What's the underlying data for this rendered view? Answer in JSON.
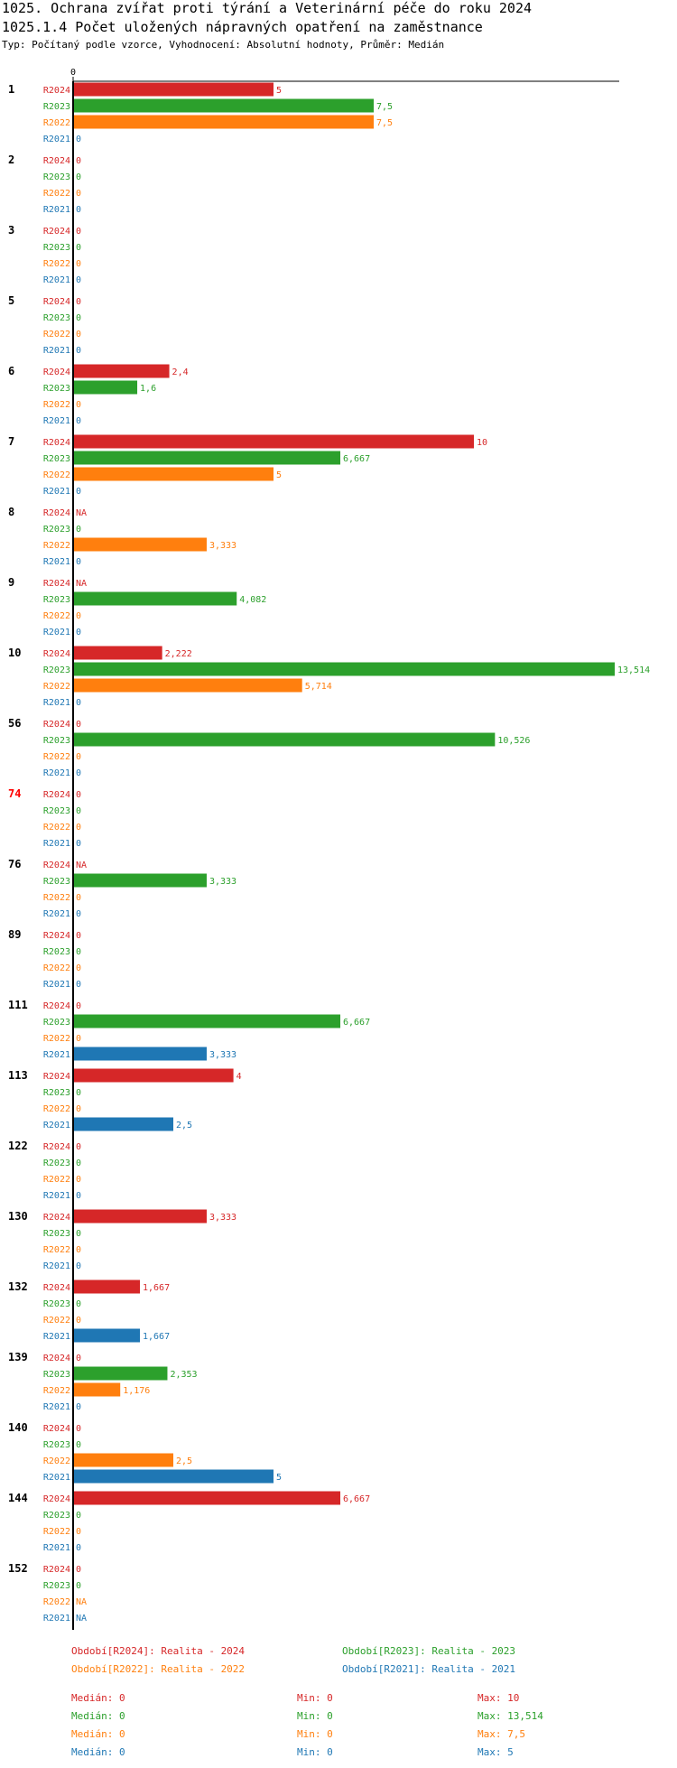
{
  "title": "1025. Ochrana zvířat proti týrání a Veterinární péče do roku 2024",
  "subtitle_title": "1025.1.4 Počet uložených nápravných opatření na zaměstnance",
  "description": "Typ: Počítaný podle vzorce, Vyhodnocení: Absolutní hodnoty, Průměr: Medián",
  "colors": {
    "R2024": "#d62728",
    "R2023": "#2ca02c",
    "R2022": "#ff7f0e",
    "R2021": "#1f77b4",
    "highlight": "#ff0000"
  },
  "chart_data": {
    "type": "bar",
    "orientation": "horizontal",
    "axis_zero_label": "0",
    "xlim": [
      0,
      13.514
    ],
    "series_order": [
      "R2024",
      "R2023",
      "R2022",
      "R2021"
    ],
    "groups": [
      {
        "label": "1",
        "values": [
          {
            "s": "R2024",
            "v": 5,
            "label": "5"
          },
          {
            "s": "R2023",
            "v": 7.5,
            "label": "7,5"
          },
          {
            "s": "R2022",
            "v": 7.5,
            "label": "7,5"
          },
          {
            "s": "R2021",
            "v": 0,
            "label": "0"
          }
        ]
      },
      {
        "label": "2",
        "values": [
          {
            "s": "R2024",
            "v": 0,
            "label": "0"
          },
          {
            "s": "R2023",
            "v": 0,
            "label": "0"
          },
          {
            "s": "R2022",
            "v": 0,
            "label": "0"
          },
          {
            "s": "R2021",
            "v": 0,
            "label": "0"
          }
        ]
      },
      {
        "label": "3",
        "values": [
          {
            "s": "R2024",
            "v": 0,
            "label": "0"
          },
          {
            "s": "R2023",
            "v": 0,
            "label": "0"
          },
          {
            "s": "R2022",
            "v": 0,
            "label": "0"
          },
          {
            "s": "R2021",
            "v": 0,
            "label": "0"
          }
        ]
      },
      {
        "label": "5",
        "values": [
          {
            "s": "R2024",
            "v": 0,
            "label": "0"
          },
          {
            "s": "R2023",
            "v": 0,
            "label": "0"
          },
          {
            "s": "R2022",
            "v": 0,
            "label": "0"
          },
          {
            "s": "R2021",
            "v": 0,
            "label": "0"
          }
        ]
      },
      {
        "label": "6",
        "values": [
          {
            "s": "R2024",
            "v": 2.4,
            "label": "2,4"
          },
          {
            "s": "R2023",
            "v": 1.6,
            "label": "1,6"
          },
          {
            "s": "R2022",
            "v": 0,
            "label": "0"
          },
          {
            "s": "R2021",
            "v": 0,
            "label": "0"
          }
        ]
      },
      {
        "label": "7",
        "values": [
          {
            "s": "R2024",
            "v": 10,
            "label": "10"
          },
          {
            "s": "R2023",
            "v": 6.667,
            "label": "6,667"
          },
          {
            "s": "R2022",
            "v": 5,
            "label": "5"
          },
          {
            "s": "R2021",
            "v": 0,
            "label": "0"
          }
        ]
      },
      {
        "label": "8",
        "values": [
          {
            "s": "R2024",
            "v": null,
            "label": "NA"
          },
          {
            "s": "R2023",
            "v": 0,
            "label": "0"
          },
          {
            "s": "R2022",
            "v": 3.333,
            "label": "3,333"
          },
          {
            "s": "R2021",
            "v": 0,
            "label": "0"
          }
        ]
      },
      {
        "label": "9",
        "values": [
          {
            "s": "R2024",
            "v": null,
            "label": "NA"
          },
          {
            "s": "R2023",
            "v": 4.082,
            "label": "4,082"
          },
          {
            "s": "R2022",
            "v": 0,
            "label": "0"
          },
          {
            "s": "R2021",
            "v": 0,
            "label": "0"
          }
        ]
      },
      {
        "label": "10",
        "values": [
          {
            "s": "R2024",
            "v": 2.222,
            "label": "2,222"
          },
          {
            "s": "R2023",
            "v": 13.514,
            "label": "13,514"
          },
          {
            "s": "R2022",
            "v": 5.714,
            "label": "5,714"
          },
          {
            "s": "R2021",
            "v": 0,
            "label": "0"
          }
        ]
      },
      {
        "label": "56",
        "values": [
          {
            "s": "R2024",
            "v": 0,
            "label": "0"
          },
          {
            "s": "R2023",
            "v": 10.526,
            "label": "10,526"
          },
          {
            "s": "R2022",
            "v": 0,
            "label": "0"
          },
          {
            "s": "R2021",
            "v": 0,
            "label": "0"
          }
        ]
      },
      {
        "label": "74",
        "highlight": true,
        "values": [
          {
            "s": "R2024",
            "v": 0,
            "label": "0"
          },
          {
            "s": "R2023",
            "v": 0,
            "label": "0"
          },
          {
            "s": "R2022",
            "v": 0,
            "label": "0"
          },
          {
            "s": "R2021",
            "v": 0,
            "label": "0"
          }
        ]
      },
      {
        "label": "76",
        "values": [
          {
            "s": "R2024",
            "v": null,
            "label": "NA"
          },
          {
            "s": "R2023",
            "v": 3.333,
            "label": "3,333"
          },
          {
            "s": "R2022",
            "v": 0,
            "label": "0"
          },
          {
            "s": "R2021",
            "v": 0,
            "label": "0"
          }
        ]
      },
      {
        "label": "89",
        "values": [
          {
            "s": "R2024",
            "v": 0,
            "label": "0"
          },
          {
            "s": "R2023",
            "v": 0,
            "label": "0"
          },
          {
            "s": "R2022",
            "v": 0,
            "label": "0"
          },
          {
            "s": "R2021",
            "v": 0,
            "label": "0"
          }
        ]
      },
      {
        "label": "111",
        "values": [
          {
            "s": "R2024",
            "v": 0,
            "label": "0"
          },
          {
            "s": "R2023",
            "v": 6.667,
            "label": "6,667"
          },
          {
            "s": "R2022",
            "v": 0,
            "label": "0"
          },
          {
            "s": "R2021",
            "v": 3.333,
            "label": "3,333"
          }
        ]
      },
      {
        "label": "113",
        "values": [
          {
            "s": "R2024",
            "v": 4,
            "label": "4"
          },
          {
            "s": "R2023",
            "v": 0,
            "label": "0"
          },
          {
            "s": "R2022",
            "v": 0,
            "label": "0"
          },
          {
            "s": "R2021",
            "v": 2.5,
            "label": "2,5"
          }
        ]
      },
      {
        "label": "122",
        "values": [
          {
            "s": "R2024",
            "v": 0,
            "label": "0"
          },
          {
            "s": "R2023",
            "v": 0,
            "label": "0"
          },
          {
            "s": "R2022",
            "v": 0,
            "label": "0"
          },
          {
            "s": "R2021",
            "v": 0,
            "label": "0"
          }
        ]
      },
      {
        "label": "130",
        "values": [
          {
            "s": "R2024",
            "v": 3.333,
            "label": "3,333"
          },
          {
            "s": "R2023",
            "v": 0,
            "label": "0"
          },
          {
            "s": "R2022",
            "v": 0,
            "label": "0"
          },
          {
            "s": "R2021",
            "v": 0,
            "label": "0"
          }
        ]
      },
      {
        "label": "132",
        "values": [
          {
            "s": "R2024",
            "v": 1.667,
            "label": "1,667"
          },
          {
            "s": "R2023",
            "v": 0,
            "label": "0"
          },
          {
            "s": "R2022",
            "v": 0,
            "label": "0"
          },
          {
            "s": "R2021",
            "v": 1.667,
            "label": "1,667"
          }
        ]
      },
      {
        "label": "139",
        "values": [
          {
            "s": "R2024",
            "v": 0,
            "label": "0"
          },
          {
            "s": "R2023",
            "v": 2.353,
            "label": "2,353"
          },
          {
            "s": "R2022",
            "v": 1.176,
            "label": "1,176"
          },
          {
            "s": "R2021",
            "v": 0,
            "label": "0"
          }
        ]
      },
      {
        "label": "140",
        "values": [
          {
            "s": "R2024",
            "v": 0,
            "label": "0"
          },
          {
            "s": "R2023",
            "v": 0,
            "label": "0"
          },
          {
            "s": "R2022",
            "v": 2.5,
            "label": "2,5"
          },
          {
            "s": "R2021",
            "v": 5,
            "label": "5"
          }
        ]
      },
      {
        "label": "144",
        "values": [
          {
            "s": "R2024",
            "v": 6.667,
            "label": "6,667"
          },
          {
            "s": "R2023",
            "v": 0,
            "label": "0"
          },
          {
            "s": "R2022",
            "v": 0,
            "label": "0"
          },
          {
            "s": "R2021",
            "v": 0,
            "label": "0"
          }
        ]
      },
      {
        "label": "152",
        "values": [
          {
            "s": "R2024",
            "v": 0,
            "label": "0"
          },
          {
            "s": "R2023",
            "v": 0,
            "label": "0"
          },
          {
            "s": "R2022",
            "v": null,
            "label": "NA"
          },
          {
            "s": "R2021",
            "v": null,
            "label": "NA"
          }
        ]
      }
    ],
    "legend": [
      {
        "s": "R2024",
        "text": "Období[R2024]: Realita - 2024"
      },
      {
        "s": "R2023",
        "text": "Období[R2023]: Realita - 2023"
      },
      {
        "s": "R2022",
        "text": "Období[R2022]: Realita - 2022"
      },
      {
        "s": "R2021",
        "text": "Období[R2021]: Realita - 2021"
      }
    ],
    "stats": [
      {
        "s": "R2024",
        "median": "Medián: 0",
        "min": "Min: 0",
        "max": "Max: 10"
      },
      {
        "s": "R2023",
        "median": "Medián: 0",
        "min": "Min: 0",
        "max": "Max: 13,514"
      },
      {
        "s": "R2022",
        "median": "Medián: 0",
        "min": "Min: 0",
        "max": "Max: 7,5"
      },
      {
        "s": "R2021",
        "median": "Medián: 0",
        "min": "Min: 0",
        "max": "Max: 5"
      }
    ]
  }
}
